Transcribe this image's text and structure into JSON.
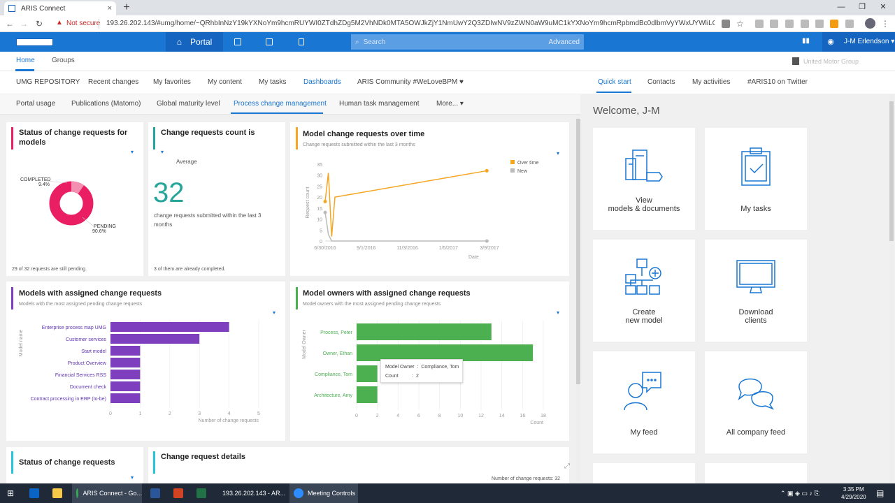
{
  "browser": {
    "tab_title": "ARIS Connect",
    "new_tab": "+",
    "close_tab": "×",
    "not_secure": "Not secure",
    "url": "193.26.202.143/#umg/home/~QRhbInNzY19kYXNoYm9hcmRUYWI0ZTdhZDg5M2VhNDk0MTA5OWJkZjY1NmUwY2Q3ZDIwNV9zZWN0aW9uMC1kYXNoYm9hcmRpbmdBc0dlbmVyYWxUYWliLCJzc2NfYW0aW9..."
  },
  "header": {
    "portal": "Portal",
    "search_placeholder": "Search",
    "advanced": "Advanced",
    "user": "J-M Erlendson",
    "org": "United Motor Group"
  },
  "subnav": {
    "home": "Home",
    "groups": "Groups"
  },
  "tabs1": [
    "UMG REPOSITORY",
    "Recent changes",
    "My favorites",
    "My content",
    "My tasks",
    "Dashboards",
    "ARIS Community #WeLoveBPM ♥"
  ],
  "tabs2": [
    "Portal usage",
    "Publications (Matomo)",
    "Global maturity level",
    "Process change management",
    "Human task management",
    "More..."
  ],
  "cards": {
    "status_models": {
      "title": "Status of change requests for models",
      "completed_label": "COMPLETED",
      "completed_pct": "9.4%",
      "pending_label": "PENDING",
      "pending_pct": "90.6%",
      "footer": "29 of 32 requests are still pending."
    },
    "count": {
      "title": "Change requests count is",
      "average": "Average",
      "value": "32",
      "desc": "change requests submitted within the last 3 months",
      "footer": "3 of them are already completed."
    },
    "over_time": {
      "title": "Model change requests over time",
      "subtitle": "Change requests submitted within the last 3 months",
      "ylabel": "Request count",
      "xlabel": "Date",
      "legend": [
        "Over time",
        "New"
      ]
    },
    "models_assigned": {
      "title": "Models with assigned change requests",
      "subtitle": "Models with the most assigned pending change requests",
      "ylabel": "Model name",
      "xlabel": "Number of change requests"
    },
    "owners_assigned": {
      "title": "Model owners with assigned change requests",
      "subtitle": "Model owners with the most assigned pending change requests",
      "ylabel": "Model Owner",
      "xlabel": "Count",
      "tooltip_owner": "Model Owner  :  Compliance, Tom",
      "tooltip_count": "Count          :  2"
    },
    "status_cr": {
      "title": "Status of change requests"
    },
    "details": {
      "title": "Change request details",
      "footer": "Number of change requests: 32"
    }
  },
  "chart_data": [
    {
      "type": "pie",
      "title": "Status of change requests for models",
      "labels": [
        "COMPLETED",
        "PENDING"
      ],
      "values": [
        9.4,
        90.6
      ],
      "colors": [
        "#f48fb1",
        "#e91e63"
      ]
    },
    {
      "type": "line",
      "title": "Model change requests over time",
      "xlabel": "Date",
      "ylabel": "Request count",
      "x_ticks": [
        "6/30/2016",
        "9/1/2016",
        "11/3/2016",
        "1/5/2017",
        "3/9/2017"
      ],
      "y_ticks": [
        0,
        5,
        10,
        15,
        20,
        25,
        30,
        35
      ],
      "ylim": [
        0,
        35
      ],
      "series": [
        {
          "name": "Over time",
          "color": "#f5a623",
          "points": [
            [
              "6/30/2016",
              18
            ],
            [
              "7/5/2016",
              31
            ],
            [
              "7/10/2016",
              2
            ],
            [
              "7/15/2016",
              20
            ],
            [
              "3/5/2017",
              32
            ]
          ]
        },
        {
          "name": "New",
          "color": "#bbbbbb",
          "points": [
            [
              "6/30/2016",
              13
            ],
            [
              "7/5/2016",
              3
            ],
            [
              "7/10/2016",
              0
            ],
            [
              "3/5/2017",
              0
            ]
          ]
        }
      ]
    },
    {
      "type": "bar",
      "orientation": "horizontal",
      "title": "Models with assigned change requests",
      "xlabel": "Number of change requests",
      "ylabel": "Model name",
      "categories": [
        "Enterprise process map UMG",
        "Customer services",
        "Start model",
        "Product Overview",
        "Financial Services RSS",
        "Document check",
        "Contract processing in ERP (to-be)"
      ],
      "values": [
        4,
        3,
        1,
        1,
        1,
        1,
        1
      ],
      "x_ticks": [
        0,
        1,
        2,
        3,
        4,
        5
      ],
      "xlim": [
        0,
        5
      ],
      "color": "#7e3fbf"
    },
    {
      "type": "bar",
      "orientation": "horizontal",
      "title": "Model owners with assigned change requests",
      "xlabel": "Count",
      "ylabel": "Model Owner",
      "categories": [
        "Process, Peter",
        "Owner, Ethan",
        "Compliance, Tom",
        "Architecture, Amy"
      ],
      "values": [
        13,
        17,
        2,
        2
      ],
      "x_ticks": [
        0,
        2,
        4,
        6,
        8,
        10,
        12,
        14,
        16,
        18
      ],
      "xlim": [
        0,
        18
      ],
      "color": "#4caf50"
    }
  ],
  "right": {
    "tabs": [
      "Quick start",
      "Contacts",
      "My activities",
      "#ARIS10 on Twitter"
    ],
    "welcome": "Welcome, J-M",
    "tiles": [
      "View\nmodels & documents",
      "My tasks",
      "Create\nnew model",
      "Download\nclients",
      "My feed",
      "All company feed"
    ]
  },
  "taskbar": {
    "items": [
      "ARIS Connect - Go...",
      "193.26.202.143 - AR...",
      "Meeting Controls"
    ],
    "time": "3:35 PM",
    "date": "4/29/2020"
  }
}
